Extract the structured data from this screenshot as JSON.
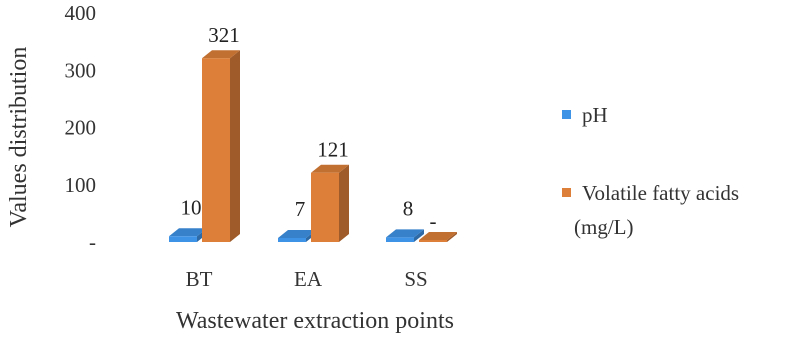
{
  "chart_data": {
    "type": "bar",
    "style": "3d-column",
    "xlabel": "Wastewater extraction points",
    "ylabel": "Values distribution",
    "categories": [
      "BT",
      "EA",
      "SS"
    ],
    "ylim": [
      0,
      400
    ],
    "yticks": [
      {
        "value": 0,
        "label": "-"
      },
      {
        "value": 100,
        "label": "100"
      },
      {
        "value": 200,
        "label": "200"
      },
      {
        "value": 300,
        "label": "300"
      },
      {
        "value": 400,
        "label": "400"
      }
    ],
    "series": [
      {
        "name": "pH",
        "color": "#3e93e6",
        "values": [
          10,
          7,
          8
        ],
        "labels": [
          "10",
          "7",
          "8"
        ]
      },
      {
        "name": "Volatile fatty acids (mg/L)",
        "color": "#dd7f39",
        "values": [
          321,
          121,
          0
        ],
        "labels": [
          "321",
          "121",
          "-"
        ]
      }
    ],
    "legend_position": "right",
    "grid": false
  },
  "legend": {
    "ph_label": "pH",
    "vfa_label_line1": "Volatile fatty acids",
    "vfa_label_line2": "(mg/L)"
  }
}
